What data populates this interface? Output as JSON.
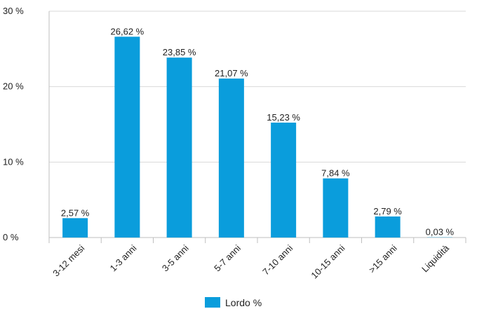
{
  "chart_data": {
    "type": "bar",
    "categories": [
      "3-12 mesi",
      "1-3 anni",
      "3-5 anni",
      "5-7 anni",
      "7-10 anni",
      "10-15 anni",
      ">15 anni",
      "Liquidità"
    ],
    "series": [
      {
        "name": "Lordo %",
        "values": [
          2.57,
          26.62,
          23.85,
          21.07,
          15.23,
          7.84,
          2.79,
          0.03
        ],
        "data_labels": [
          "2,57 %",
          "26,62 %",
          "23,85 %",
          "21,07 %",
          "15,23 %",
          "7,84 %",
          "2,79 %",
          "0,03 %"
        ]
      }
    ],
    "yticks": [
      0,
      10,
      20,
      30
    ],
    "ytick_labels": [
      "0 %",
      "10 %",
      "20 %",
      "30 %"
    ],
    "ylim": [
      0,
      30
    ],
    "grid": true,
    "legend_position": "bottom",
    "colors": {
      "bar": "#0a9ddc",
      "grid": "#d9d9d9",
      "axis": "#bfbfbf"
    }
  }
}
